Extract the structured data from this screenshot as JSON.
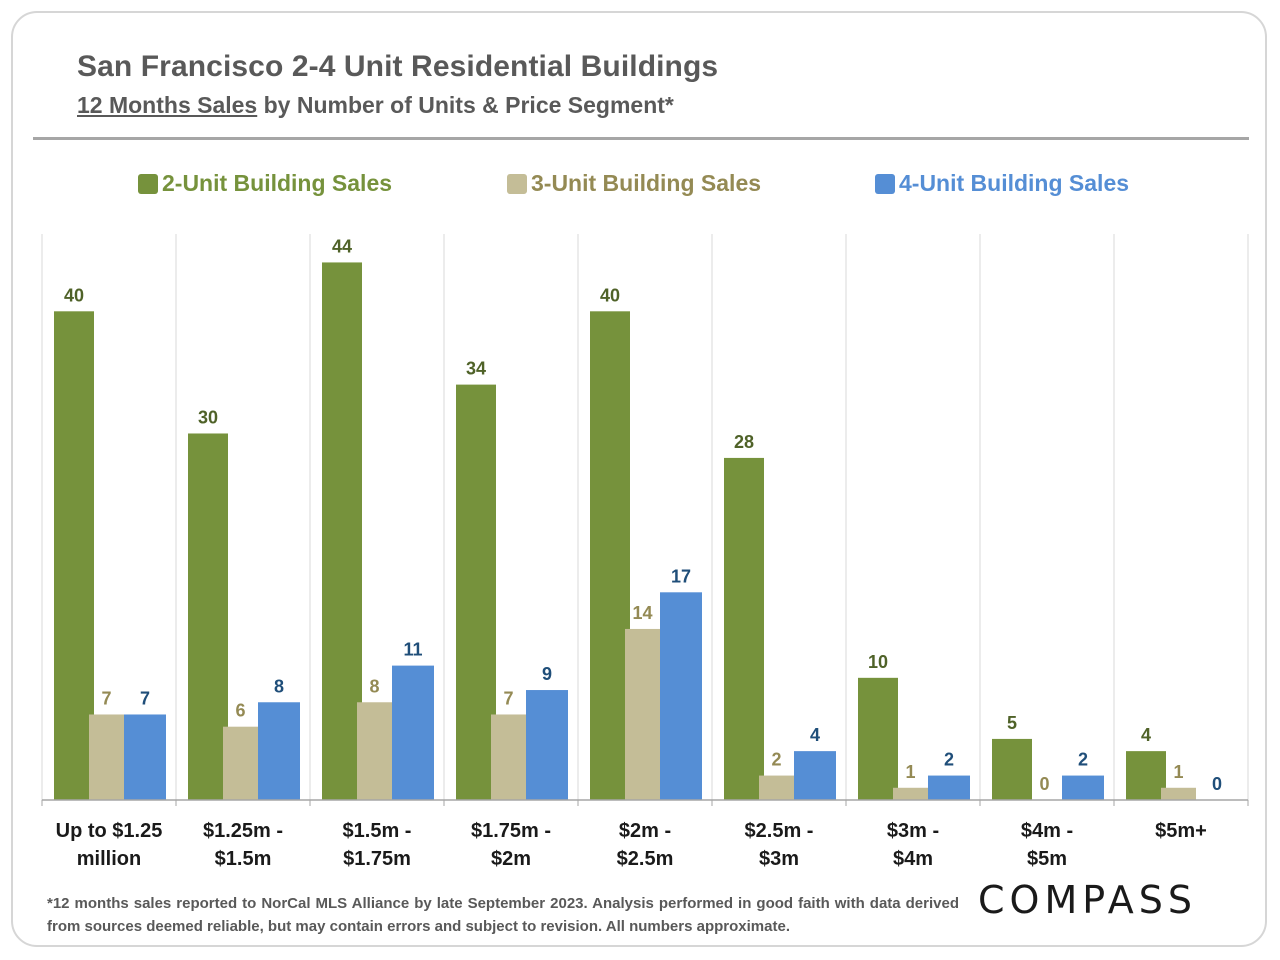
{
  "header": {
    "title": "San Francisco 2-4 Unit Residential Buildings",
    "subtitle_underlined": "12 Months Sales",
    "subtitle_rest": " by Number of Units & Price Segment*"
  },
  "colors": {
    "two_unit": "#76923c",
    "three_unit": "#c4bd97",
    "four_unit": "#558ed5",
    "two_unit_text": "#4f6228",
    "three_unit_text": "#948a54",
    "four_unit_text": "#1f4e79"
  },
  "chart_data": {
    "type": "bar",
    "title": "San Francisco 2-4 Unit Residential Buildings",
    "subtitle": "12 Months Sales by Number of Units & Price Segment*",
    "xlabel": "",
    "ylabel": "",
    "ylim": [
      0,
      46
    ],
    "grid": "vertical category separators",
    "legend_position": "top",
    "categories": [
      [
        "Up to $1.25",
        "million"
      ],
      [
        "$1.25m -",
        "$1.5m"
      ],
      [
        "$1.5m -",
        "$1.75m"
      ],
      [
        "$1.75m -",
        "$2m"
      ],
      [
        "$2m -",
        "$2.5m"
      ],
      [
        "$2.5m -",
        "$3m"
      ],
      [
        "$3m -",
        "$4m"
      ],
      [
        "$4m -",
        "$5m"
      ],
      [
        "$5m+",
        ""
      ]
    ],
    "series": [
      {
        "name": "2-Unit Building Sales",
        "values": [
          40,
          30,
          44,
          34,
          40,
          28,
          10,
          5,
          4
        ]
      },
      {
        "name": "3-Unit Building Sales",
        "values": [
          7,
          6,
          8,
          7,
          14,
          2,
          1,
          0,
          1
        ]
      },
      {
        "name": "4-Unit Building Sales",
        "values": [
          7,
          8,
          11,
          9,
          17,
          4,
          2,
          2,
          0
        ]
      }
    ]
  },
  "footnote": "*12 months sales reported to NorCal MLS Alliance by late September 2023. Analysis performed in good faith with data derived from sources deemed reliable, but may contain errors and subject to revision. All numbers approximate.",
  "logo_text": "COMPASS"
}
